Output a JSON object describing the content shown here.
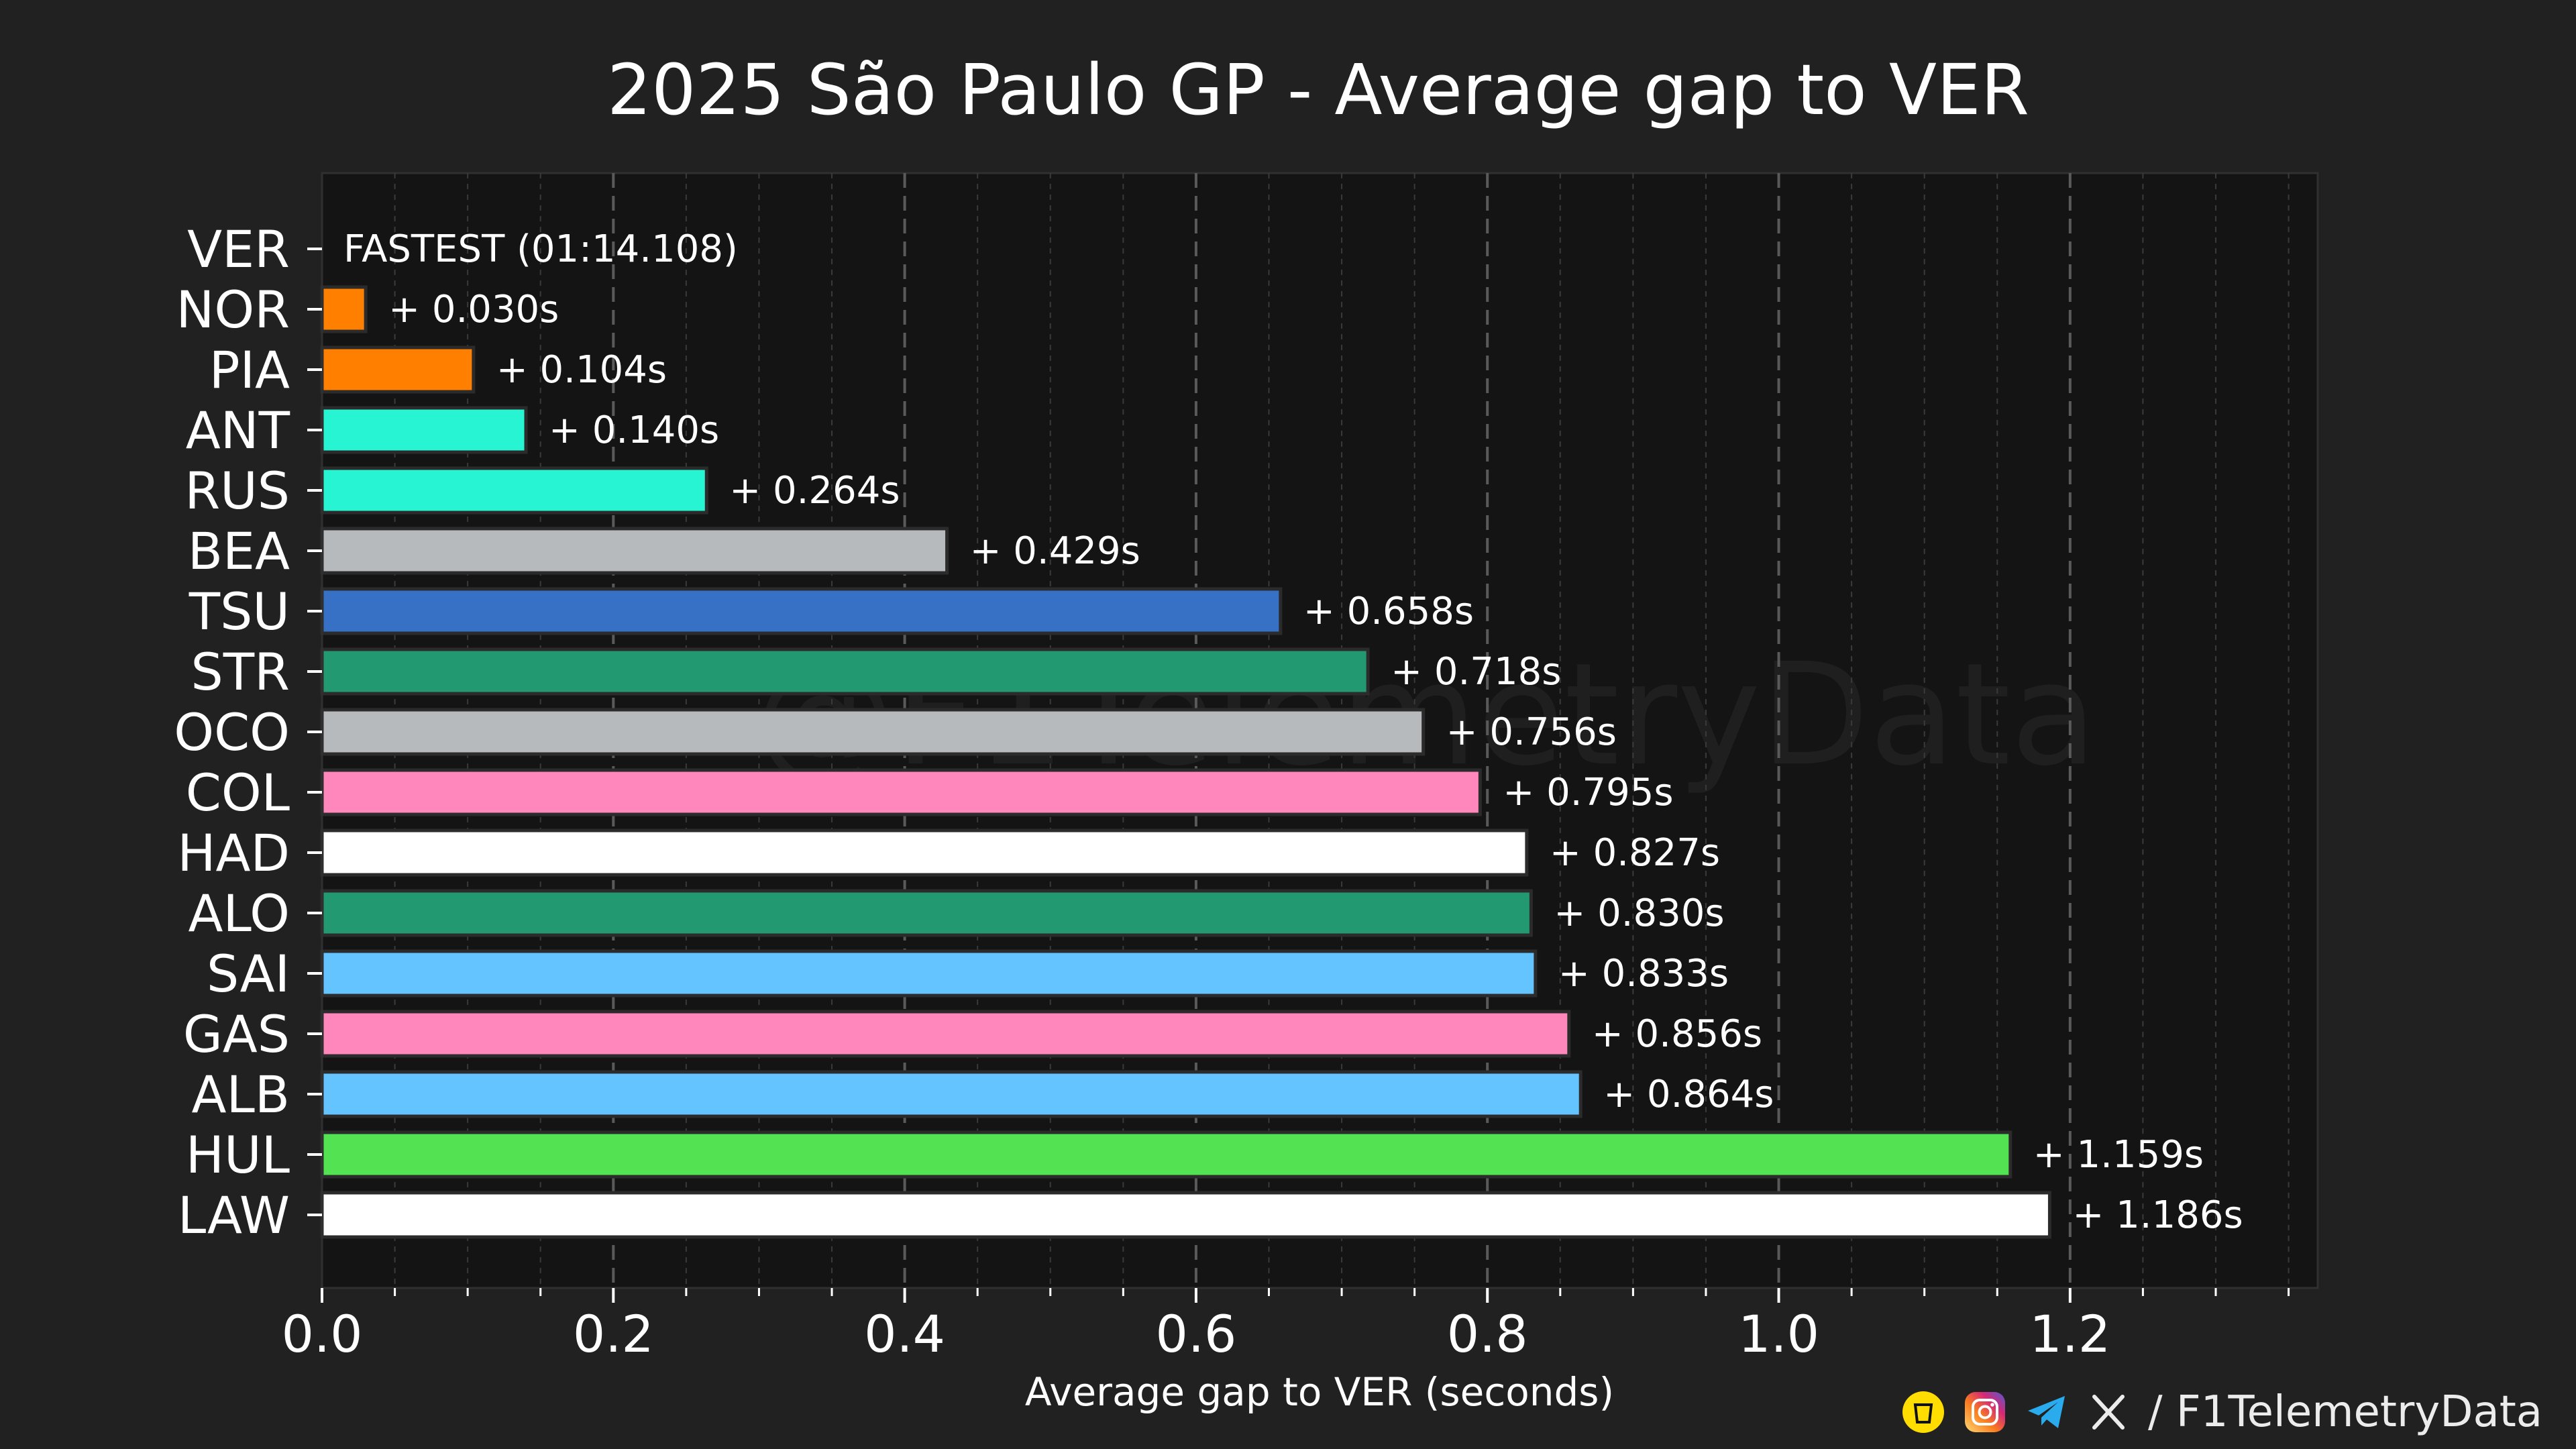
{
  "chart_data": {
    "type": "bar",
    "orientation": "horizontal",
    "title": "2025 São Paulo GP - Average gap to VER",
    "xlabel": "Average gap to VER (seconds)",
    "ylabel": "",
    "xlim": [
      0,
      1.37
    ],
    "xticks": [
      0.0,
      0.2,
      0.4,
      0.6,
      0.8,
      1.0,
      1.2
    ],
    "xtick_labels": [
      "0.0",
      "0.2",
      "0.4",
      "0.6",
      "0.8",
      "1.0",
      "1.2"
    ],
    "grid": "vertical dashed, major and minor",
    "watermark": "@F1TelemetryData",
    "categories": [
      "VER",
      "NOR",
      "PIA",
      "ANT",
      "RUS",
      "BEA",
      "TSU",
      "STR",
      "OCO",
      "COL",
      "HAD",
      "ALO",
      "SAI",
      "GAS",
      "ALB",
      "HUL",
      "LAW"
    ],
    "values": [
      0.0,
      0.03,
      0.104,
      0.14,
      0.264,
      0.429,
      0.658,
      0.718,
      0.756,
      0.795,
      0.827,
      0.83,
      0.833,
      0.856,
      0.864,
      1.159,
      1.186
    ],
    "labels": [
      "FASTEST (01:14.108)",
      "+ 0.030s",
      "+ 0.104s",
      "+ 0.140s",
      "+ 0.264s",
      "+ 0.429s",
      "+ 0.658s",
      "+ 0.718s",
      "+ 0.756s",
      "+ 0.795s",
      "+ 0.827s",
      "+ 0.830s",
      "+ 0.833s",
      "+ 0.856s",
      "+ 0.864s",
      "+ 1.159s",
      "+ 1.186s"
    ],
    "colors": [
      "#3671C6",
      "#FF8000",
      "#FF8000",
      "#27F4D2",
      "#27F4D2",
      "#B6BABD",
      "#3671C6",
      "#229971",
      "#B6BABD",
      "#FF87BC",
      "#FFFFFF",
      "#229971",
      "#64C4FF",
      "#FF87BC",
      "#64C4FF",
      "#52E252",
      "#FFFFFF"
    ]
  },
  "footer": {
    "handle": "/ F1TelemetryData",
    "icons": [
      "buymeacoffee-icon",
      "instagram-icon",
      "telegram-icon",
      "x-icon"
    ]
  },
  "colors": {
    "background": "#212121",
    "plot_background": "#141414",
    "grid": "#5a5a5a",
    "text": "#ffffff"
  }
}
